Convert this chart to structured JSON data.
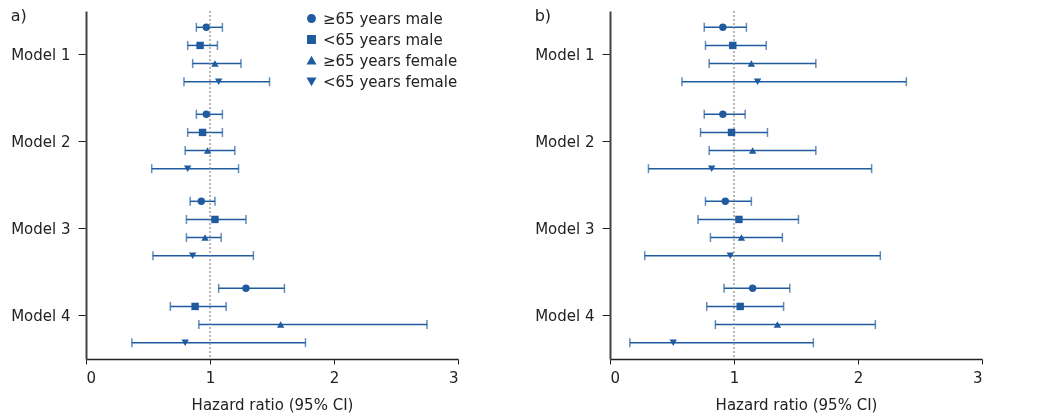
{
  "chart_data": [
    {
      "type": "scatter",
      "title": "a)",
      "xlabel": "Hazard ratio (95% CI)",
      "categories": [
        "Model 1",
        "Model 2",
        "Model 3",
        "Model 4"
      ],
      "orientation": "horizontal",
      "xlim": [
        0,
        3
      ],
      "xticks": [
        0,
        1,
        2,
        3
      ],
      "legend": "top right",
      "ref_lines": [
        {
          "axis": "x",
          "value": 1,
          "color": "#888888",
          "line_style": "dotted"
        }
      ],
      "series": [
        {
          "name": "≥65 years male",
          "color": "#1f5b9e",
          "marker": "circle",
          "values": [
            0.97,
            0.97,
            0.93,
            1.29
          ],
          "errors": [
            [
              0.89,
              1.1
            ],
            [
              0.89,
              1.1
            ],
            [
              0.84,
              1.04
            ],
            [
              1.07,
              1.6
            ]
          ]
        },
        {
          "name": "<65 years male",
          "color": "#1f5b9e",
          "marker": "square",
          "values": [
            0.92,
            0.94,
            1.04,
            0.88
          ],
          "errors": [
            [
              0.82,
              1.06
            ],
            [
              0.82,
              1.1
            ],
            [
              0.81,
              1.29
            ],
            [
              0.68,
              1.13
            ]
          ]
        },
        {
          "name": "≥65 years female",
          "color": "#1f5b9e",
          "marker": "triangle",
          "values": [
            1.04,
            0.98,
            0.96,
            1.57
          ],
          "errors": [
            [
              0.86,
              1.25
            ],
            [
              0.8,
              1.2
            ],
            [
              0.81,
              1.09
            ],
            [
              0.91,
              2.75
            ]
          ]
        },
        {
          "name": "<65 years female",
          "color": "#1f5b9e",
          "marker": "triangle-down",
          "values": [
            1.07,
            0.82,
            0.86,
            0.8
          ],
          "errors": [
            [
              0.79,
              1.48
            ],
            [
              0.53,
              1.23
            ],
            [
              0.54,
              1.35
            ],
            [
              0.37,
              1.77
            ]
          ]
        }
      ]
    },
    {
      "type": "scatter",
      "title": "b)",
      "xlabel": "Hazard ratio (95% CI)",
      "categories": [
        "Model 1",
        "Model 2",
        "Model 3",
        "Model 4"
      ],
      "orientation": "horizontal",
      "xlim": [
        0,
        3
      ],
      "xticks": [
        0,
        1,
        2,
        3
      ],
      "ref_lines": [
        {
          "axis": "x",
          "value": 1,
          "color": "#888888",
          "line_style": "dotted"
        }
      ],
      "series": [
        {
          "color": "#1f5b9e",
          "marker": "circle",
          "values": [
            0.91,
            0.91,
            0.93,
            1.15
          ],
          "errors": [
            [
              0.76,
              1.1
            ],
            [
              0.76,
              1.09
            ],
            [
              0.77,
              1.14
            ],
            [
              0.92,
              1.45
            ]
          ]
        },
        {
          "color": "#1f5b9e",
          "marker": "square",
          "values": [
            0.99,
            0.98,
            1.04,
            1.05
          ],
          "errors": [
            [
              0.77,
              1.26
            ],
            [
              0.73,
              1.27
            ],
            [
              0.71,
              1.52
            ],
            [
              0.78,
              1.4
            ]
          ]
        },
        {
          "color": "#1f5b9e",
          "marker": "triangle",
          "values": [
            1.14,
            1.15,
            1.06,
            1.35
          ],
          "errors": [
            [
              0.8,
              1.66
            ],
            [
              0.8,
              1.66
            ],
            [
              0.81,
              1.39
            ],
            [
              0.85,
              2.14
            ]
          ]
        },
        {
          "color": "#1f5b9e",
          "marker": "triangle-down",
          "values": [
            1.19,
            0.82,
            0.97,
            0.51
          ],
          "errors": [
            [
              0.58,
              2.39
            ],
            [
              0.31,
              2.11
            ],
            [
              0.28,
              2.18
            ],
            [
              0.16,
              1.64
            ]
          ]
        }
      ]
    }
  ]
}
